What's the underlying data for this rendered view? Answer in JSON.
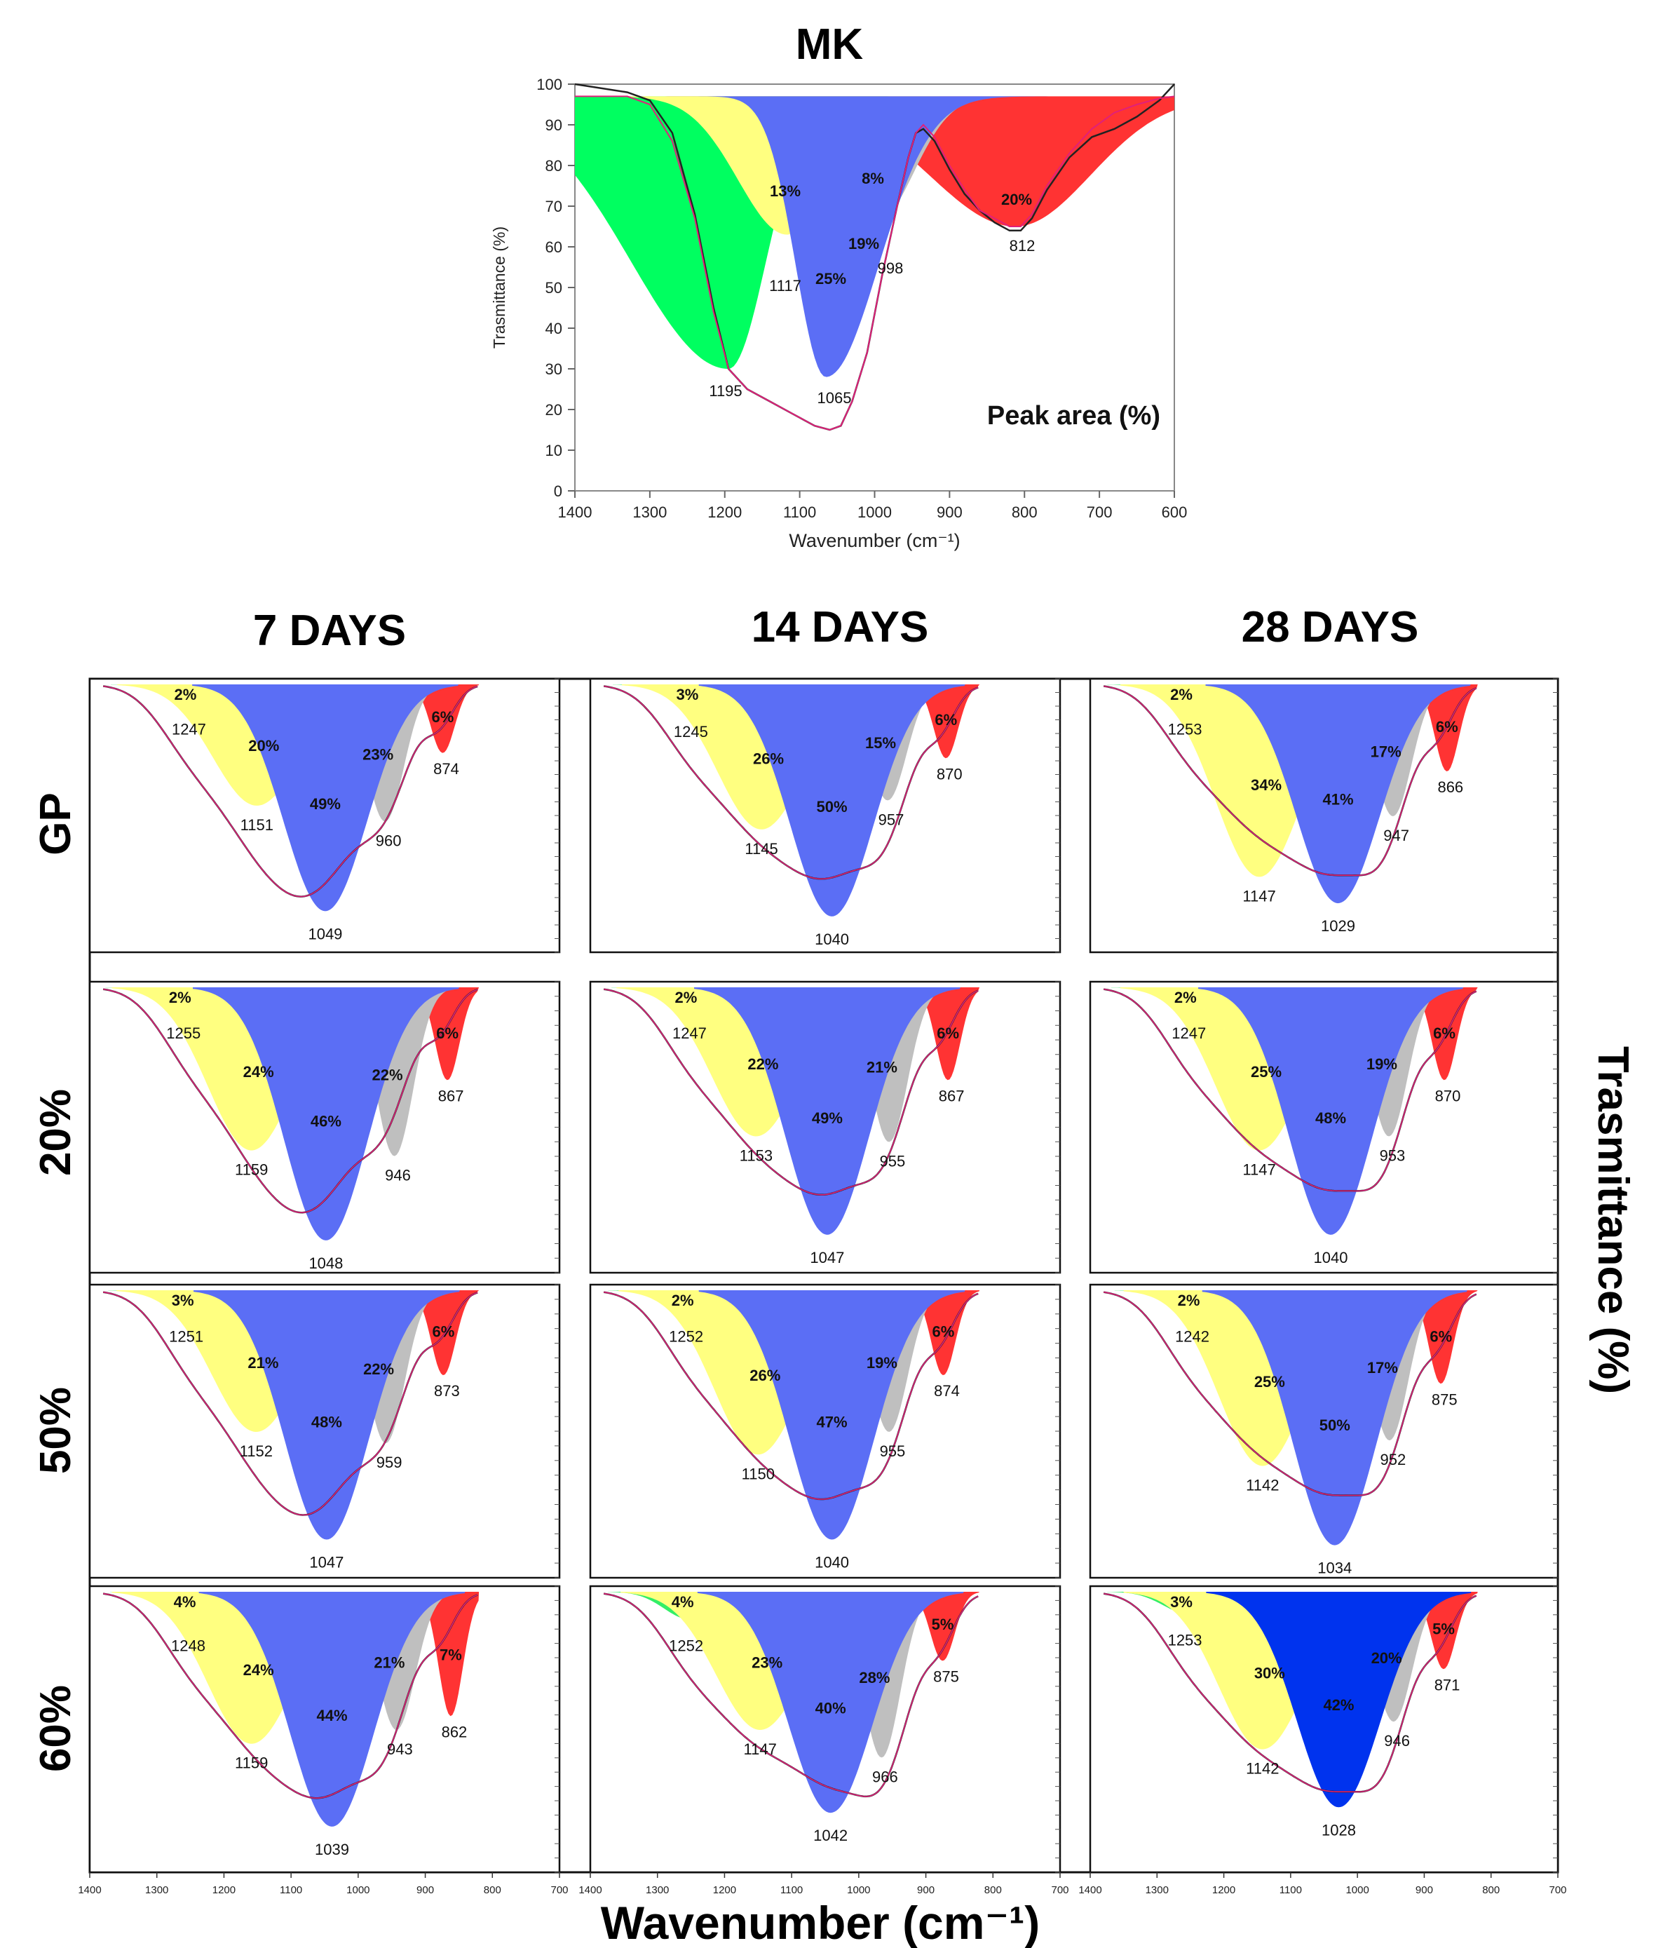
{
  "page": {
    "title": "MK",
    "bottom_axis_title": "Wavenumber (cm⁻¹)",
    "right_axis_title": "Trasmittance (%)",
    "columns": [
      "7 DAYS",
      "14 DAYS",
      "28 DAYS"
    ],
    "rows": [
      "GP",
      "20%",
      "50%",
      "60%"
    ]
  },
  "chart_data": [
    {
      "type": "area",
      "id": "MK",
      "title": "MK",
      "xlabel": "Wavenumber (cm⁻¹)",
      "ylabel": "Trasmittance (%)",
      "xlim": [
        1400,
        600
      ],
      "ylim": [
        0,
        100
      ],
      "xticks": [
        1400,
        1300,
        1200,
        1100,
        1000,
        900,
        800,
        700,
        600
      ],
      "yticks": [
        0,
        10,
        20,
        30,
        40,
        50,
        60,
        70,
        80,
        90,
        100
      ],
      "annotation": "Peak area (%)",
      "baseline": 97,
      "peaks": [
        {
          "center": 1195,
          "label": "1195",
          "percent": "19%",
          "color": "#00ff60",
          "depth": 67,
          "left": 130,
          "right": 50
        },
        {
          "center": 1117,
          "label": "1117",
          "percent": "13%",
          "color": "#ffff80",
          "depth": 34,
          "left": 65,
          "right": 50
        },
        {
          "center": 1065,
          "label": "1065",
          "percent": "25%",
          "color": "#5b6ef5",
          "depth": 69,
          "left": 40,
          "right": 70
        },
        {
          "center": 998,
          "label": "998",
          "percent": "8%",
          "color": "#bfbfbf",
          "depth": 31,
          "left": 60,
          "right": 50
        },
        {
          "center": 812,
          "label": "812",
          "percent": "20%",
          "color": "#ff3333",
          "depth": 32,
          "left": 115,
          "right": 100
        }
      ],
      "curve": [
        [
          1400,
          100
        ],
        [
          1330,
          98
        ],
        [
          1300,
          96
        ],
        [
          1270,
          88
        ],
        [
          1240,
          68
        ],
        [
          1215,
          45
        ],
        [
          1195,
          30
        ],
        [
          1170,
          25
        ],
        [
          1140,
          22
        ],
        [
          1110,
          19
        ],
        [
          1080,
          16
        ],
        [
          1060,
          15
        ],
        [
          1045,
          16
        ],
        [
          1030,
          22
        ],
        [
          1010,
          34
        ],
        [
          990,
          53
        ],
        [
          970,
          70
        ],
        [
          955,
          82
        ],
        [
          945,
          88
        ],
        [
          935,
          89
        ],
        [
          920,
          86
        ],
        [
          900,
          79
        ],
        [
          880,
          73
        ],
        [
          860,
          69
        ],
        [
          840,
          66
        ],
        [
          820,
          64
        ],
        [
          805,
          64
        ],
        [
          790,
          67
        ],
        [
          770,
          74
        ],
        [
          740,
          82
        ],
        [
          710,
          87
        ],
        [
          680,
          89
        ],
        [
          650,
          92
        ],
        [
          620,
          96
        ],
        [
          600,
          100
        ]
      ],
      "fit_curve": [
        [
          1400,
          97
        ],
        [
          1330,
          97
        ],
        [
          1300,
          95
        ],
        [
          1270,
          86
        ],
        [
          1240,
          67
        ],
        [
          1215,
          44
        ],
        [
          1195,
          30
        ],
        [
          1170,
          25
        ],
        [
          1140,
          22
        ],
        [
          1110,
          19
        ],
        [
          1080,
          16
        ],
        [
          1060,
          15
        ],
        [
          1045,
          16
        ],
        [
          1030,
          22
        ],
        [
          1010,
          34
        ],
        [
          990,
          53
        ],
        [
          970,
          70
        ],
        [
          955,
          82
        ],
        [
          945,
          88
        ],
        [
          935,
          90
        ],
        [
          920,
          87
        ],
        [
          900,
          80
        ],
        [
          880,
          74
        ],
        [
          860,
          69
        ],
        [
          840,
          67
        ],
        [
          820,
          65
        ],
        [
          805,
          65
        ],
        [
          790,
          68
        ],
        [
          770,
          75
        ],
        [
          740,
          83
        ],
        [
          710,
          89
        ],
        [
          680,
          93
        ],
        [
          650,
          95
        ],
        [
          620,
          96.5
        ],
        [
          600,
          97
        ]
      ]
    },
    {
      "type": "area",
      "id": "GP-7",
      "row": "GP",
      "column": "7 DAYS",
      "curve_min": 1031,
      "peaks": [
        {
          "center": 1247,
          "label": "1247",
          "percent": "2%",
          "color": "#33ee66",
          "depth": 0.07
        },
        {
          "center": 1151,
          "label": "1151",
          "percent": "20%",
          "color": "#ffff80",
          "depth": 0.46
        },
        {
          "center": 1049,
          "label": "1049",
          "percent": "49%",
          "color": "#5b6ef5",
          "depth": 0.86
        },
        {
          "center": 960,
          "label": "960",
          "percent": "23%",
          "color": "#bfbfbf",
          "depth": 0.52
        },
        {
          "center": 874,
          "label": "874",
          "percent": "6%",
          "color": "#ff3333",
          "depth": 0.26
        }
      ]
    },
    {
      "type": "area",
      "id": "GP-14",
      "row": "GP",
      "column": "14 DAYS",
      "curve_min": 1012,
      "peaks": [
        {
          "center": 1245,
          "label": "1245",
          "percent": "3%",
          "color": "#33ee66",
          "depth": 0.08
        },
        {
          "center": 1145,
          "label": "1145",
          "percent": "26%",
          "color": "#ffff80",
          "depth": 0.55
        },
        {
          "center": 1040,
          "label": "1040",
          "percent": "50%",
          "color": "#5b6ef5",
          "depth": 0.88
        },
        {
          "center": 957,
          "label": "957",
          "percent": "15%",
          "color": "#bfbfbf",
          "depth": 0.44
        },
        {
          "center": 870,
          "label": "870",
          "percent": "6%",
          "color": "#ff3333",
          "depth": 0.28
        }
      ]
    },
    {
      "type": "area",
      "id": "GP-28",
      "row": "GP",
      "column": "28 DAYS",
      "curve_min": 1005,
      "peaks": [
        {
          "center": 1253,
          "label": "1253",
          "percent": "2%",
          "color": "#33ee66",
          "depth": 0.07
        },
        {
          "center": 1147,
          "label": "1147",
          "percent": "34%",
          "color": "#ffff80",
          "depth": 0.73
        },
        {
          "center": 1029,
          "label": "1029",
          "percent": "41%",
          "color": "#5b6ef5",
          "depth": 0.83
        },
        {
          "center": 947,
          "label": "947",
          "percent": "17%",
          "color": "#bfbfbf",
          "depth": 0.5
        },
        {
          "center": 866,
          "label": "866",
          "percent": "6%",
          "color": "#ff3333",
          "depth": 0.33
        }
      ]
    },
    {
      "type": "area",
      "id": "20-7",
      "row": "20%",
      "column": "7 DAYS",
      "curve_min": 1030,
      "peaks": [
        {
          "center": 1255,
          "label": "1255",
          "percent": "2%",
          "color": "#33ee66",
          "depth": 0.07
        },
        {
          "center": 1159,
          "label": "1159",
          "percent": "24%",
          "color": "#ffff80",
          "depth": 0.58
        },
        {
          "center": 1048,
          "label": "1048",
          "percent": "46%",
          "color": "#5b6ef5",
          "depth": 0.9
        },
        {
          "center": 946,
          "label": "946",
          "percent": "22%",
          "color": "#bfbfbf",
          "depth": 0.6
        },
        {
          "center": 867,
          "label": "867",
          "percent": "6%",
          "color": "#ff3333",
          "depth": 0.33
        }
      ]
    },
    {
      "type": "area",
      "id": "20-14",
      "row": "20%",
      "column": "14 DAYS",
      "curve_min": 1012,
      "peaks": [
        {
          "center": 1247,
          "label": "1247",
          "percent": "2%",
          "color": "#33ee66",
          "depth": 0.07
        },
        {
          "center": 1153,
          "label": "1153",
          "percent": "22%",
          "color": "#ffff80",
          "depth": 0.53
        },
        {
          "center": 1047,
          "label": "1047",
          "percent": "49%",
          "color": "#5b6ef5",
          "depth": 0.88
        },
        {
          "center": 955,
          "label": "955",
          "percent": "21%",
          "color": "#bfbfbf",
          "depth": 0.55
        },
        {
          "center": 867,
          "label": "867",
          "percent": "6%",
          "color": "#ff3333",
          "depth": 0.33
        }
      ]
    },
    {
      "type": "area",
      "id": "20-28",
      "row": "20%",
      "column": "28 DAYS",
      "curve_min": 1005,
      "peaks": [
        {
          "center": 1247,
          "label": "1247",
          "percent": "2%",
          "color": "#33ee66",
          "depth": 0.07
        },
        {
          "center": 1147,
          "label": "1147",
          "percent": "25%",
          "color": "#ffff80",
          "depth": 0.58
        },
        {
          "center": 1040,
          "label": "1040",
          "percent": "48%",
          "color": "#5b6ef5",
          "depth": 0.88
        },
        {
          "center": 953,
          "label": "953",
          "percent": "19%",
          "color": "#bfbfbf",
          "depth": 0.53
        },
        {
          "center": 870,
          "label": "870",
          "percent": "6%",
          "color": "#ff3333",
          "depth": 0.33
        }
      ]
    },
    {
      "type": "area",
      "id": "50-7",
      "row": "50%",
      "column": "7 DAYS",
      "curve_min": 1028,
      "peaks": [
        {
          "center": 1251,
          "label": "1251",
          "percent": "3%",
          "color": "#33ee66",
          "depth": 0.07
        },
        {
          "center": 1152,
          "label": "1152",
          "percent": "21%",
          "color": "#ffff80",
          "depth": 0.5
        },
        {
          "center": 1047,
          "label": "1047",
          "percent": "48%",
          "color": "#5b6ef5",
          "depth": 0.88
        },
        {
          "center": 959,
          "label": "959",
          "percent": "22%",
          "color": "#bfbfbf",
          "depth": 0.54
        },
        {
          "center": 873,
          "label": "873",
          "percent": "6%",
          "color": "#ff3333",
          "depth": 0.3
        }
      ]
    },
    {
      "type": "area",
      "id": "50-14",
      "row": "50%",
      "column": "14 DAYS",
      "curve_min": 1012,
      "peaks": [
        {
          "center": 1252,
          "label": "1252",
          "percent": "2%",
          "color": "#33ee66",
          "depth": 0.07
        },
        {
          "center": 1150,
          "label": "1150",
          "percent": "26%",
          "color": "#ffff80",
          "depth": 0.58
        },
        {
          "center": 1040,
          "label": "1040",
          "percent": "47%",
          "color": "#5b6ef5",
          "depth": 0.88
        },
        {
          "center": 955,
          "label": "955",
          "percent": "19%",
          "color": "#bfbfbf",
          "depth": 0.5
        },
        {
          "center": 874,
          "label": "874",
          "percent": "6%",
          "color": "#ff3333",
          "depth": 0.3
        }
      ]
    },
    {
      "type": "area",
      "id": "50-28",
      "row": "50%",
      "column": "28 DAYS",
      "curve_min": 1005,
      "peaks": [
        {
          "center": 1242,
          "label": "1242",
          "percent": "2%",
          "color": "#33ee66",
          "depth": 0.07
        },
        {
          "center": 1142,
          "label": "1142",
          "percent": "25%",
          "color": "#ffff80",
          "depth": 0.62
        },
        {
          "center": 1034,
          "label": "1034",
          "percent": "50%",
          "color": "#5b6ef5",
          "depth": 0.9
        },
        {
          "center": 952,
          "label": "952",
          "percent": "17%",
          "color": "#bfbfbf",
          "depth": 0.53
        },
        {
          "center": 875,
          "label": "875",
          "percent": "6%",
          "color": "#ff3333",
          "depth": 0.33
        }
      ]
    },
    {
      "type": "area",
      "id": "60-7",
      "row": "60%",
      "column": "7 DAYS",
      "curve_min": 1015,
      "peaks": [
        {
          "center": 1248,
          "label": "1248",
          "percent": "4%",
          "color": "#33ee66",
          "depth": 0.1
        },
        {
          "center": 1159,
          "label": "1159",
          "percent": "24%",
          "color": "#ffff80",
          "depth": 0.55
        },
        {
          "center": 1039,
          "label": "1039",
          "percent": "44%",
          "color": "#5b6ef5",
          "depth": 0.85
        },
        {
          "center": 943,
          "label": "943",
          "percent": "21%",
          "color": "#bfbfbf",
          "depth": 0.5
        },
        {
          "center": 862,
          "label": "862",
          "percent": "7%",
          "color": "#ff3333",
          "depth": 0.45
        }
      ]
    },
    {
      "type": "area",
      "id": "60-14",
      "row": "60%",
      "column": "14 DAYS",
      "curve_min": 1000,
      "peaks": [
        {
          "center": 1252,
          "label": "1252",
          "percent": "4%",
          "color": "#33ee66",
          "depth": 0.1
        },
        {
          "center": 1147,
          "label": "1147",
          "percent": "23%",
          "color": "#ffff80",
          "depth": 0.5
        },
        {
          "center": 1042,
          "label": "1042",
          "percent": "40%",
          "color": "#5b6ef5",
          "depth": 0.8
        },
        {
          "center": 966,
          "label": "966",
          "percent": "28%",
          "color": "#bfbfbf",
          "depth": 0.6
        },
        {
          "center": 875,
          "label": "875",
          "percent": "5%",
          "color": "#ff3333",
          "depth": 0.25
        }
      ]
    },
    {
      "type": "area",
      "id": "60-28",
      "row": "60%",
      "column": "28 DAYS",
      "curve_min": 1005,
      "peaks": [
        {
          "center": 1253,
          "label": "1253",
          "percent": "3%",
          "color": "#33ee66",
          "depth": 0.08
        },
        {
          "center": 1142,
          "label": "1142",
          "percent": "30%",
          "color": "#ffff80",
          "depth": 0.57
        },
        {
          "center": 1028,
          "label": "1028",
          "percent": "42%",
          "color": "#0033ee",
          "depth": 0.78
        },
        {
          "center": 946,
          "label": "946",
          "percent": "20%",
          "color": "#bfbfbf",
          "depth": 0.47
        },
        {
          "center": 871,
          "label": "871",
          "percent": "5%",
          "color": "#ff3333",
          "depth": 0.28
        }
      ]
    }
  ],
  "small_axis_ticks": [
    1400,
    1300,
    1200,
    1100,
    1000,
    900,
    800,
    700
  ]
}
